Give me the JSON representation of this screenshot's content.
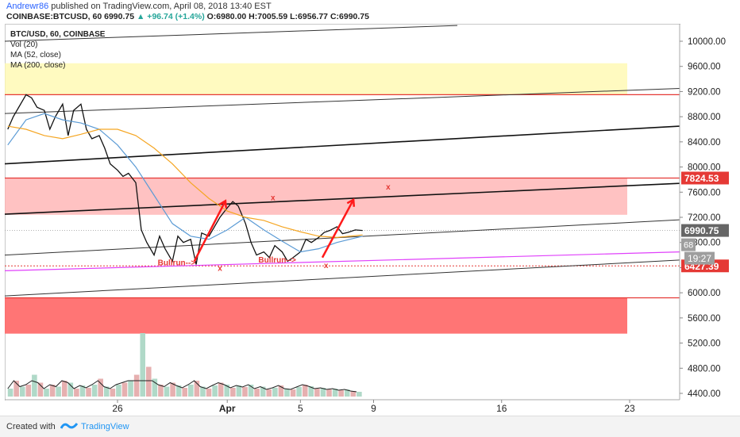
{
  "header": {
    "author": "Andrewr86",
    "published_text": "published on TradingView.com, April 08, 2018 13:40 EST",
    "symbol_line": "COINBASE:BTCUSD, 60",
    "price": "6990.75",
    "change": "▲ +96.74 (+1.4%)",
    "open": "O:6980.00",
    "high": "H:7005.59",
    "low": "L:6956.77",
    "close": "C:6990.75"
  },
  "legend": {
    "title": "BTC/USD, 60, COINBASE",
    "vol": "Vol (20)",
    "ma52": "MA (52, close)",
    "ma200": "MA (200, close)"
  },
  "annotations": {
    "bullrun1": "Bullrun-->",
    "bullrun2": "Bullrun-->",
    "x_mark": "x"
  },
  "footer": {
    "created_with": "Created with",
    "brand": "TradingView"
  },
  "colors": {
    "price_line": "#111111",
    "ma52": "#5b9bd5",
    "ma200": "#f5a623",
    "resistance_zone": "#ffb3b3",
    "support_zone": "#ff6666",
    "upper_zone": "#fff9b0",
    "arrow": "#ff1a1a",
    "magenta_line": "#e040fb",
    "volume": "#c8c8c8"
  },
  "chart_data": {
    "type": "line",
    "title": "BTC/USD, 60, COINBASE",
    "xlabel": "",
    "ylabel": "",
    "ylim": [
      4300,
      10350
    ],
    "y_ticks": [
      4400,
      4800,
      5200,
      5600,
      6000,
      6400,
      6800,
      7200,
      7600,
      8000,
      8400,
      8800,
      9200,
      9600,
      10000
    ],
    "y_tick_labels": [
      "4400.00",
      "4800.00",
      "5200.00",
      "5600.00",
      "6000.00",
      "6400.00",
      "6800.00",
      "7200.00",
      "7600.00",
      "8000.00",
      "8400.00",
      "8800.00",
      "9200.00",
      "9600.00",
      "10000.00"
    ],
    "x_ticks": [
      {
        "day": 26,
        "label": "26"
      },
      {
        "day": 32,
        "label": "Apr"
      },
      {
        "day": 36,
        "label": "5"
      },
      {
        "day": 40,
        "label": "9"
      },
      {
        "day": 47,
        "label": "16"
      },
      {
        "day": 54,
        "label": "23"
      }
    ],
    "price_labels": [
      {
        "value": 7824.53,
        "label": "7824.53",
        "color": "#e53935"
      },
      {
        "value": 6990.75,
        "label": "6990.75",
        "color": "#666666"
      },
      {
        "value": 6427.39,
        "label": "6427.39",
        "color": "#e53935"
      }
    ],
    "countdown": "19:27",
    "countdown_partial": "68",
    "series": [
      {
        "name": "BTC/USD",
        "x": [
          20.0,
          20.3,
          20.6,
          21.0,
          21.3,
          21.6,
          22.0,
          22.3,
          22.6,
          23.0,
          23.3,
          23.6,
          24.0,
          24.3,
          24.6,
          25.0,
          25.3,
          25.6,
          26.0,
          26.3,
          26.6,
          27.0,
          27.3,
          27.6,
          28.0,
          28.3,
          28.6,
          29.0,
          29.3,
          29.6,
          30.0,
          30.3,
          30.6,
          31.0,
          31.3,
          31.6,
          32.0,
          32.3,
          32.6,
          33.0,
          33.3,
          33.6,
          34.0,
          34.3,
          34.6,
          35.0,
          35.3,
          35.6,
          36.0,
          36.3,
          36.6,
          37.0,
          37.3,
          37.6,
          38.0,
          38.3,
          38.6,
          39.0,
          39.4
        ],
        "values": [
          8600,
          8800,
          8950,
          9150,
          9100,
          8950,
          8900,
          8600,
          8800,
          9000,
          8500,
          8900,
          9000,
          8600,
          8450,
          8500,
          8300,
          8050,
          7950,
          7850,
          7900,
          7750,
          7000,
          6800,
          6600,
          6900,
          6700,
          6500,
          6900,
          6800,
          6850,
          6450,
          6950,
          6900,
          7050,
          7200,
          7350,
          7450,
          7380,
          7100,
          6800,
          6600,
          6650,
          6560,
          6750,
          6650,
          6500,
          6560,
          6650,
          6850,
          6800,
          6880,
          6960,
          6990,
          7050,
          6940,
          6960,
          7000,
          6990
        ]
      },
      {
        "name": "MA (52, close)",
        "x": [
          20.0,
          21.0,
          22.0,
          23.0,
          24.0,
          25.0,
          26.0,
          27.0,
          28.0,
          29.0,
          30.0,
          31.0,
          32.0,
          33.0,
          34.0,
          35.0,
          36.0,
          37.0,
          38.0,
          39.4
        ],
        "values": [
          8350,
          8750,
          8850,
          8750,
          8700,
          8600,
          8350,
          8000,
          7550,
          7100,
          6900,
          6850,
          7000,
          7200,
          7000,
          6820,
          6650,
          6700,
          6800,
          6900
        ]
      },
      {
        "name": "MA (200, close)",
        "x": [
          20.0,
          21.0,
          22.0,
          23.0,
          24.0,
          25.0,
          26.0,
          27.0,
          28.0,
          29.0,
          30.0,
          31.0,
          32.0,
          33.0,
          34.0,
          35.0,
          36.0,
          37.0,
          38.0,
          39.4
        ],
        "values": [
          8650,
          8600,
          8500,
          8450,
          8520,
          8600,
          8600,
          8500,
          8300,
          8050,
          7750,
          7500,
          7300,
          7200,
          7150,
          7050,
          6970,
          6900,
          6880,
          6920
        ]
      }
    ],
    "volume": [
      20,
      40,
      25,
      30,
      55,
      35,
      20,
      30,
      25,
      40,
      35,
      20,
      28,
      22,
      30,
      45,
      25,
      20,
      30,
      35,
      40,
      55,
      160,
      75,
      45,
      30,
      25,
      35,
      28,
      22,
      30,
      40,
      25,
      20,
      28,
      35,
      30,
      22,
      28,
      24,
      30,
      20,
      25,
      18,
      22,
      28,
      20,
      18,
      24,
      30,
      26,
      20,
      22,
      18,
      20,
      16,
      18,
      14,
      12
    ]
  }
}
